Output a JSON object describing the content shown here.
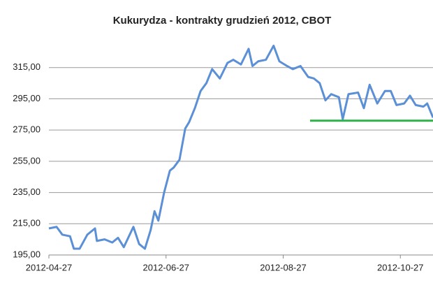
{
  "chart_data": {
    "type": "line",
    "title": "Kukurydza - kontrakty grudzień 2012, CBOT",
    "x": [
      "2012-04-27",
      "2012-05-01",
      "2012-05-04",
      "2012-05-08",
      "2012-05-10",
      "2012-05-13",
      "2012-05-17",
      "2012-05-21",
      "2012-05-22",
      "2012-05-26",
      "2012-05-30",
      "2012-06-02",
      "2012-06-05",
      "2012-06-10",
      "2012-06-13",
      "2012-06-16",
      "2012-06-19",
      "2012-06-21",
      "2012-06-23",
      "2012-06-26",
      "2012-06-29",
      "2012-07-01",
      "2012-07-04",
      "2012-07-07",
      "2012-07-09",
      "2012-07-12",
      "2012-07-15",
      "2012-07-18",
      "2012-07-21",
      "2012-07-25",
      "2012-07-29",
      "2012-08-01",
      "2012-08-05",
      "2012-08-09",
      "2012-08-11",
      "2012-08-14",
      "2012-08-18",
      "2012-08-22",
      "2012-08-25",
      "2012-08-29",
      "2012-09-01",
      "2012-09-05",
      "2012-09-09",
      "2012-09-12",
      "2012-09-15",
      "2012-09-18",
      "2012-09-21",
      "2012-09-25",
      "2012-09-27",
      "2012-09-30",
      "2012-10-05",
      "2012-10-08",
      "2012-10-11",
      "2012-10-15",
      "2012-10-19",
      "2012-10-22",
      "2012-10-25",
      "2012-10-29",
      "2012-11-01",
      "2012-11-04",
      "2012-11-08",
      "2012-11-10",
      "2012-11-13"
    ],
    "values": [
      212,
      213,
      208,
      207,
      199,
      199,
      208,
      212,
      204,
      205,
      203,
      206,
      200,
      213,
      202,
      199,
      211,
      223,
      217,
      235,
      249,
      251,
      256,
      276,
      280,
      289,
      300,
      305,
      314,
      308,
      318,
      320,
      317,
      327,
      316,
      319,
      320,
      329,
      319,
      316,
      314,
      316,
      309,
      308,
      305,
      294,
      298,
      296,
      282,
      298,
      299,
      289,
      304,
      292,
      300,
      300,
      291,
      292,
      297,
      291,
      290,
      292,
      283
    ],
    "color": "#5b8fd6",
    "xlim": [
      "2012-04-27",
      "2012-11-13"
    ],
    "xticks": [
      "2012-04-27",
      "2012-06-27",
      "2012-08-27",
      "2012-10-27"
    ],
    "ylim": [
      195,
      335
    ],
    "yticks": [
      {
        "value": 195,
        "label": "195,00"
      },
      {
        "value": 215,
        "label": "215,00"
      },
      {
        "value": 235,
        "label": "235,00"
      },
      {
        "value": 255,
        "label": "255,00"
      },
      {
        "value": 275,
        "label": "275,00"
      },
      {
        "value": 295,
        "label": "295,00"
      },
      {
        "value": 315,
        "label": "315,00"
      }
    ],
    "grid": true,
    "reference_line": {
      "value": 281,
      "x": [
        "2012-09-10",
        "2012-11-13"
      ],
      "color": "#2eb34a"
    }
  }
}
